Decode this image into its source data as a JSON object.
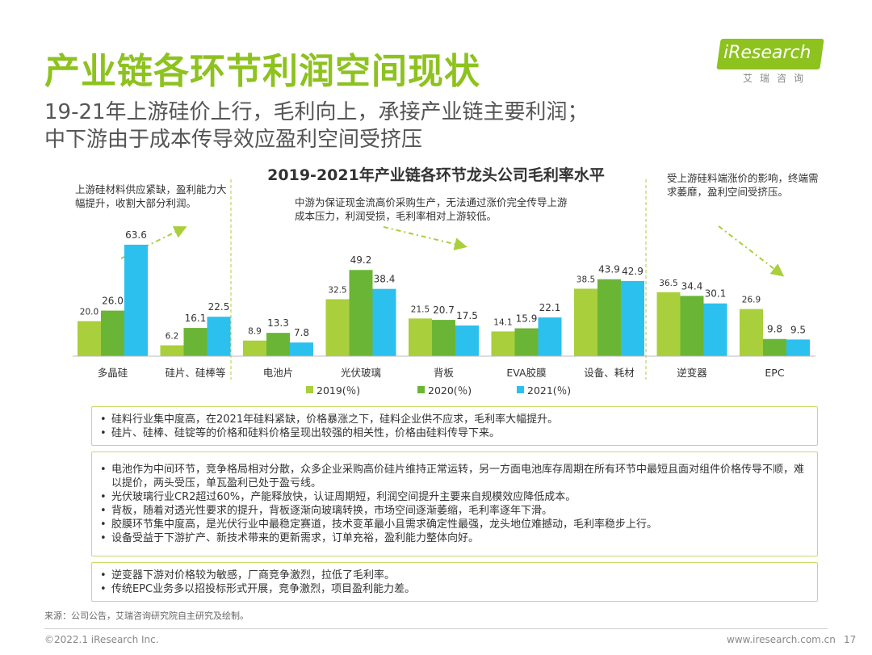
{
  "header": {
    "title": "产业链各环节利润空间现状",
    "subtitle_line1": "19-21年上游硅价上行，毛利向上，承接产业链主要利润；",
    "subtitle_line2": "中下游由于成本传导效应盈利空间受挤压"
  },
  "logo": {
    "brand": "iResearch",
    "cn": "艾瑞咨询"
  },
  "chart_data": {
    "type": "bar",
    "title": "2019-2021年产业链各环节龙头公司毛利率水平",
    "categories": [
      "多晶硅",
      "硅片、硅棒等",
      "电池片",
      "光伏玻璃",
      "背板",
      "EVA胶膜",
      "设备、耗材",
      "逆变器",
      "EPC"
    ],
    "series": [
      {
        "name": "2019(％)",
        "color": "#a9cf3c",
        "values": [
          20.0,
          6.2,
          8.9,
          32.5,
          21.5,
          14.1,
          38.5,
          36.5,
          26.9
        ]
      },
      {
        "name": "2020(％)",
        "color": "#6bb536",
        "values": [
          26.0,
          16.1,
          13.3,
          49.2,
          20.7,
          15.9,
          43.9,
          34.4,
          9.8
        ]
      },
      {
        "name": "2021(％)",
        "color": "#2cc0ee",
        "values": [
          63.6,
          22.5,
          7.8,
          38.4,
          17.5,
          22.1,
          42.9,
          30.1,
          9.5
        ]
      }
    ],
    "value_labels": [
      [
        "20.0",
        "26.0",
        "63.6"
      ],
      [
        "6.2",
        "16.1",
        "22.5"
      ],
      [
        "8.9",
        "13.3",
        "7.8"
      ],
      [
        "32.5",
        "49.2",
        "38.4"
      ],
      [
        "21.5",
        "20.7",
        "17.5"
      ],
      [
        "14.1",
        "15.9",
        "22.1"
      ],
      [
        "38.5",
        "43.9",
        "42.9"
      ],
      [
        "36.5",
        "34.4",
        "30.1"
      ],
      [
        "26.9",
        "9.8",
        "9.5"
      ]
    ],
    "ylim": [
      0,
      70
    ],
    "annotations": {
      "upstream": "上游硅材料供应紧缺，盈利能力大幅提升，收割大部分利润。",
      "midstream": "中游为保证现金流高价采购生产，无法通过涨价完全传导上游成本压力，利润受损，毛利率相对上游较低。",
      "downstream": "受上游硅料端涨价的影响，终端需求萎靡，盈利空间受挤压。"
    }
  },
  "notes": {
    "box1": [
      "硅料行业集中度高，在2021年硅料紧缺，价格暴涨之下，硅料企业供不应求，毛利率大幅提升。",
      "硅片、硅棒、硅锭等的价格和硅料价格呈现出较强的相关性，价格由硅料传导下来。"
    ],
    "box2": [
      "电池作为中间环节，竞争格局相对分散，众多企业采购高价硅片维持正常运转，另一方面电池库存周期在所有环节中最短且面对组件价格传导不顺，难以提价，两头受压，单瓦盈利已处于盈亏线。",
      "光伏玻璃行业CR2超过60%，产能释放快，认证周期短，利润空间提升主要来自规模效应降低成本。",
      "背板，随着对透光性要求的提升，背板逐渐向玻璃转换，市场空间逐渐萎缩，毛利率逐年下滑。",
      "胶膜环节集中度高，是光伏行业中最稳定赛道，技术变革最小且需求确定性最强，龙头地位难撼动，毛利率稳步上行。",
      "设备受益于下游扩产、新技术带来的更新需求，订单充裕，盈利能力整体向好。"
    ],
    "box3": [
      "逆变器下游对价格较为敏感，厂商竞争激烈，拉低了毛利率。",
      "传统EPC业务多以招投标形式开展，竞争激烈，项目盈利能力差。"
    ]
  },
  "footer": {
    "source": "来源：公司公告，艾瑞咨询研究院自主研究及绘制。",
    "copyright": "©2022.1 iResearch Inc.",
    "url": "www.iresearch.com.cn",
    "page": "17"
  }
}
